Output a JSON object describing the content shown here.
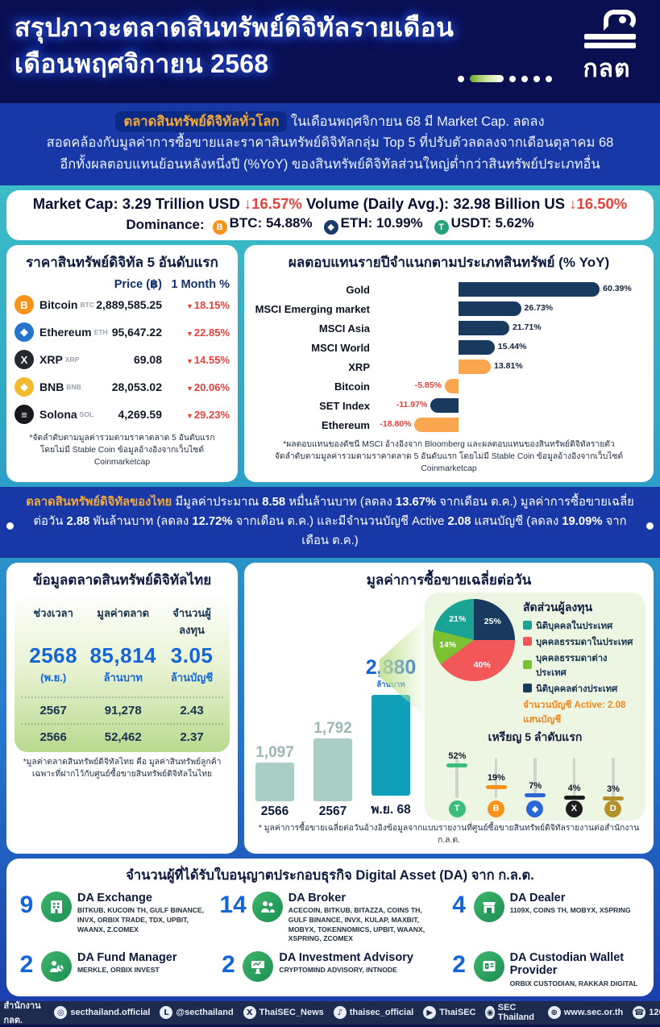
{
  "header": {
    "title_line1": "สรุปภาวะตลาดสินทรัพย์ดิจิทัลรายเดือน",
    "title_line2": "เดือนพฤศจิกายน 2568",
    "logo_text": "กลต"
  },
  "intro": {
    "highlight": "ตลาดสินทรัพย์ดิจิทัลทั่วโลก",
    "line1_rest": " ในเดือนพฤศจิกายน 68 มี Market Cap. ลดลง",
    "line2": "สอดคล้องกับมูลค่าการซื้อขายและราคาสินทรัพย์ดิจิทัลกลุ่ม Top 5 ที่ปรับตัวลดลงจากเดือนตุลาคม 68",
    "line3": "อีกทั้งผลตอบแทนย้อนหลังหนึ่งปี (%YoY) ของสินทรัพย์ดิจิทัลส่วนใหญ่ต่ำกว่าสินทรัพย์ประเภทอื่น"
  },
  "banner": {
    "market_cap_label": "Market Cap:",
    "market_cap_value": "3.29 Trillion USD",
    "market_cap_change": "↓16.57%",
    "volume_label": "Volume (Daily Avg.):",
    "volume_value": "32.98 Billion US",
    "volume_change": "↓16.50%",
    "dominance_label": "Dominance:",
    "dominance": [
      {
        "icon": "bitcoin-icon",
        "glyph": "B",
        "color": "#f7931a",
        "name": "BTC",
        "value": "54.88%"
      },
      {
        "icon": "ethereum-icon",
        "glyph": "◆",
        "color": "#1b3a6b",
        "name": "ETH",
        "value": "10.99%"
      },
      {
        "icon": "usdt-icon",
        "glyph": "T",
        "color": "#26a17b",
        "name": "USDT",
        "value": "5.62%"
      }
    ]
  },
  "price_panel": {
    "title": "ราคาสินทรัพย์ดิจิทัล 5 อันดับแรก",
    "col_price": "Price (฿)",
    "col_month": "1 Month %",
    "rows": [
      {
        "name": "Bitcoin",
        "ticker": "BTC",
        "price": "2,889,585.25",
        "change": "18.15%",
        "glyph": "B",
        "color": "#f7931a"
      },
      {
        "name": "Ethereum",
        "ticker": "ETH",
        "price": "95,647.22",
        "change": "22.85%",
        "glyph": "◆",
        "color": "#2775ca"
      },
      {
        "name": "XRP",
        "ticker": "XRP",
        "price": "69.08",
        "change": "14.55%",
        "glyph": "X",
        "color": "#23292f"
      },
      {
        "name": "BNB",
        "ticker": "BNB",
        "price": "28,053.02",
        "change": "20.06%",
        "glyph": "◆",
        "color": "#f3ba2f"
      },
      {
        "name": "Solona",
        "ticker": "SOL",
        "price": "4,269.59",
        "change": "29.23%",
        "glyph": "≡",
        "color": "#17171c"
      }
    ],
    "footnote1": "*จัดลำดับตามมูลค่ารวมตามราคาตลาด 5 อันดับแรก",
    "footnote2": "โดยไม่มี Stable Coin ข้อมูลอ้างอิงจากเว็บไซต์ Coinmarketcap"
  },
  "band_segments": [
    {
      "t": "ตลาดสินทรัพย์ดิจิทัลของไทย ",
      "c": "hl"
    },
    {
      "t": "มีมูลค่าประมาณ "
    },
    {
      "t": "8.58",
      "b": true
    },
    {
      "t": " หมื่นล้านบาท (ลดลง "
    },
    {
      "t": "13.67%",
      "b": true
    },
    {
      "t": " จากเดือน ต.ค.) มูลค่าการซื้อขายเฉลี่ยต่อวัน "
    },
    {
      "t": "2.88",
      "b": true
    },
    {
      "t": " พันล้านบาท (ลดลง "
    },
    {
      "t": "12.72%",
      "b": true
    },
    {
      "t": " จากเดือน ต.ค.) และมีจำนวนบัญชี Active "
    },
    {
      "t": "2.08",
      "b": true
    },
    {
      "t": " แสนบัญชี (ลดลง "
    },
    {
      "t": "19.09%",
      "b": true
    },
    {
      "t": " จากเดือน ต.ค.)"
    }
  ],
  "thai_panel": {
    "title": "ข้อมูลตลาดสินทรัพย์ดิจิทัลไทย",
    "headers": [
      "ช่วงเวลา",
      "มูลค่าตลาด",
      "จำนวนผู้ลงทุน"
    ],
    "current": {
      "period": "2568",
      "period_sub": "(พ.ย.)",
      "value": "85,814",
      "value_unit": "ล้านบาท",
      "investors": "3.05",
      "investors_unit": "ล้านบัญชี"
    },
    "rows": [
      [
        "2567",
        "91,278",
        "2.43"
      ],
      [
        "2566",
        "52,462",
        "2.37"
      ]
    ],
    "footnote1": "*มูลค่าตลาดสินทรัพย์ดิจิทัลไทย คือ มูลค่าสินทรัพย์ลูกค้า",
    "footnote2": "เฉพาะที่ฝากไว้กับศูนย์ซื้อขายสินทรัพย์ดิจิทัลในไทย"
  },
  "volume_panel": {
    "title": "มูลค่าการซื้อขายเฉลี่ยต่อวัน",
    "active_note": "จำนวนบัญชี Active: 2.08 แสนบัญชี",
    "footnote": "* มูลค่าการซื้อขายเฉลี่ยต่อวันอ้างอิงข้อมูลจากแบบรายงานที่ศูนย์ซื้อขายสินทรัพย์ดิจิทัลรายงานต่อสำนักงาน ก.ล.ต."
  },
  "licenses": {
    "title": "จำนวนผู้ที่ได้รับใบอนุญาตประกอบธุรกิจ Digital Asset (DA) จาก ก.ล.ต.",
    "items": [
      {
        "count": "9",
        "name": "DA Exchange",
        "icon": "exchange-building-icon",
        "list": "BITKUB, KUCOIN TH, GULF BINANCE, INVX, ORBIX TRADE, TDX, UPBIT, WAANX, Z.COMEX"
      },
      {
        "count": "14",
        "name": "DA Broker",
        "icon": "broker-people-icon",
        "list": "ACECOIN, BITKUB, BITAZZA, COINS TH, GULF BINANCE, INVX, KULAP, MAXBIT, MOBYX, TOKENNOMICS, UPBIT, WAANX, XSPRING, ZCOMEX"
      },
      {
        "count": "4",
        "name": "DA Dealer",
        "icon": "dealer-shop-icon",
        "list": "1109X, COINS TH, MOBYX, XSPRING"
      },
      {
        "count": "2",
        "name": "DA Fund Manager",
        "icon": "fund-manager-icon",
        "list": "MERKLE, ORBIX INVEST"
      },
      {
        "count": "2",
        "name": "DA Investment Advisory",
        "icon": "advisory-icon",
        "list": "CRYPTOMIND ADVISORY, INTNODE"
      },
      {
        "count": "2",
        "name": "DA Custodian Wallet Provider",
        "icon": "custodian-vault-icon",
        "list": "ORBIX CUSTODIAN, RAKKAR DIGITAL"
      }
    ]
  },
  "footer": {
    "items": [
      {
        "icon": "facebook-icon",
        "glyph": "f",
        "label": "สำนักงาน กลต."
      },
      {
        "icon": "instagram-icon",
        "glyph": "◎",
        "label": "secthailand.official"
      },
      {
        "icon": "line-icon",
        "glyph": "L",
        "label": "@secthailand"
      },
      {
        "icon": "x-icon",
        "glyph": "X",
        "label": "ThaiSEC_News"
      },
      {
        "icon": "tiktok-icon",
        "glyph": "♪",
        "label": "thaisec_official"
      },
      {
        "icon": "youtube-icon",
        "glyph": "▶",
        "label": "ThaiSEC"
      },
      {
        "icon": "podcast-icon",
        "glyph": "◉",
        "label": "SEC Thailand"
      },
      {
        "icon": "globe-icon",
        "glyph": "⊕",
        "label": "www.sec.or.th"
      },
      {
        "icon": "phone-icon",
        "glyph": "☎",
        "label": "1207"
      }
    ]
  },
  "chart_data": [
    {
      "type": "bar",
      "orientation": "horizontal",
      "title": "ผลตอบแทนรายปีจำแนกตามประเภทสินทรัพย์ (% YoY)",
      "categories": [
        "Gold",
        "MSCI Emerging market",
        "MSCI Asia",
        "MSCI World",
        "XRP",
        "Bitcoin",
        "SET Index",
        "Ethereum"
      ],
      "values": [
        60.39,
        26.73,
        21.71,
        15.44,
        13.81,
        -5.85,
        -11.97,
        -18.8
      ],
      "value_labels": [
        "60.39%",
        "26.73%",
        "21.71%",
        "15.44%",
        "13.81%",
        "-5.85%",
        "-11.97%",
        "-18.80%"
      ],
      "colors": [
        "#173a5e",
        "#173a5e",
        "#173a5e",
        "#173a5e",
        "#f9a64e",
        "#f9a64e",
        "#173a5e",
        "#f9a64e"
      ],
      "xlim": [
        -20,
        62
      ],
      "footnote1": "*ผลตอบแทนของดัชนี MSCI อ้างอิงจาก Bloomberg และผลตอบแทนของสินทรัพย์ดิจิทัลรายตัว",
      "footnote2": "จัดลำดับตามมูลค่ารวมตามราคาตลาด 5 อันดับแรก โดยไม่มี Stable Coin ข้อมูลอ้างอิงจากเว็บไซต์ Coinmarketcap"
    },
    {
      "type": "bar",
      "orientation": "vertical",
      "title": "มูลค่าการซื้อขายเฉลี่ยต่อวัน",
      "categories": [
        "2566",
        "2567",
        "พ.ย. 68"
      ],
      "values": [
        1097,
        1792,
        2880
      ],
      "value_labels": [
        "1,097",
        "1,792",
        "2,880"
      ],
      "unit": "ล้านบาท",
      "colors": [
        "#a9cec6",
        "#a9cec6",
        "#0f9fb8"
      ]
    },
    {
      "type": "pie",
      "title": "สัดส่วนผู้ลงทุน",
      "labels": [
        "นิติบุคคลต่างประเทศ",
        "บุคคลธรรมดาในประเทศ",
        "บุคคลธรรมดาต่างประเทศ",
        "นิติบุคคลในประเทศ"
      ],
      "values": [
        25,
        40,
        14,
        21
      ],
      "value_labels": [
        "25%",
        "40%",
        "14%",
        "21%"
      ],
      "colors": [
        "#173a5e",
        "#f2575a",
        "#7cc131",
        "#1aa394"
      ],
      "legend_order": [
        {
          "label": "นิติบุคคลในประเทศ",
          "color": "#1aa394"
        },
        {
          "label": "บุคคลธรรมดาในประเทศ",
          "color": "#f2575a"
        },
        {
          "label": "บุคคลธรรมดาต่างประเทศ",
          "color": "#7cc131"
        },
        {
          "label": "นิติบุคคลต่างประเทศ",
          "color": "#173a5e"
        }
      ]
    },
    {
      "type": "bar",
      "variant": "lollipop",
      "title": "เหรียญ 5 ลำดับแรก",
      "categories": [
        "USDT",
        "BTC",
        "ETH",
        "XRP",
        "DOGE"
      ],
      "values": [
        52,
        19,
        7,
        4,
        3
      ],
      "value_labels": [
        "52%",
        "19%",
        "7%",
        "4%",
        "3%"
      ],
      "colors": [
        "#3dbd7d",
        "#f7931a",
        "#2b66d9",
        "#1c1c1c",
        "#b3922e"
      ],
      "glyphs": [
        "T",
        "B",
        "◆",
        "X",
        "D"
      ]
    }
  ]
}
